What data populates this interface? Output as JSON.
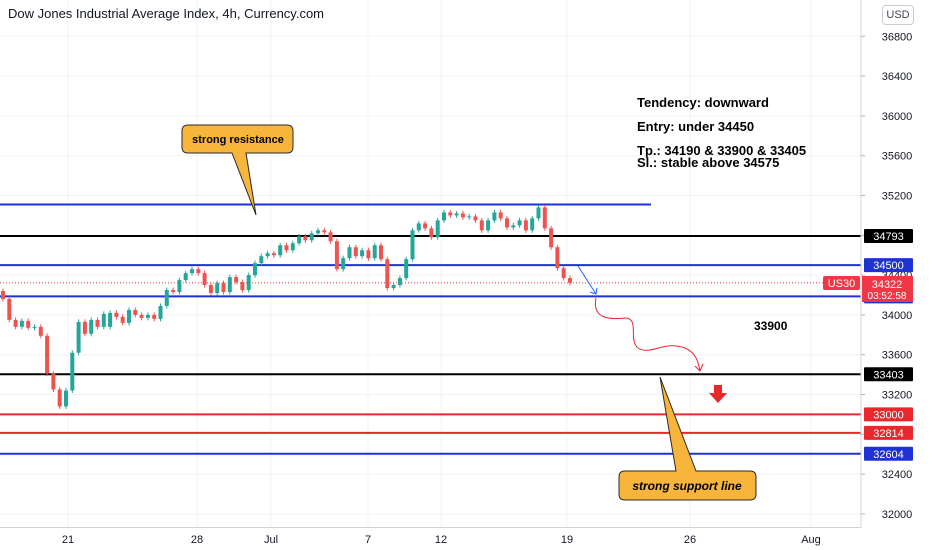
{
  "header": {
    "title": "Dow Jones Industrial Average Index, 4h, Currency.com",
    "currency_button": "USD"
  },
  "notes": {
    "tendency": "Tendency: downward",
    "entry": "Entry: under 34450",
    "tp": "Tp.: 34190 & 33900 & 33405",
    "sl": "Sl.: stable above 34575",
    "target": "33900"
  },
  "callouts": {
    "resistance": "strong resistance",
    "support": "strong support line"
  },
  "chart_data": {
    "type": "candlestick",
    "ylim": [
      31900,
      37000
    ],
    "y_ticks": [
      32000,
      32400,
      32800,
      33200,
      33600,
      34000,
      34400,
      34800,
      35200,
      35600,
      36000,
      36400,
      36800
    ],
    "x_tick_labels": [
      "21",
      "28",
      "Jul",
      "7",
      "12",
      "19",
      "26",
      "Aug"
    ],
    "horizontal_levels": [
      {
        "value": 35110,
        "color": "#1e32d6",
        "label": ""
      },
      {
        "value": 34793,
        "color": "#000000",
        "label": "34793"
      },
      {
        "value": 34500,
        "color": "#1e32d6",
        "label": "34500"
      },
      {
        "value": 34186,
        "color": "#1e32d6",
        "label": "34186"
      },
      {
        "value": 33403,
        "color": "#000000",
        "label": "33403"
      },
      {
        "value": 33000,
        "color": "#e8282c",
        "label": "33000"
      },
      {
        "value": 32814,
        "color": "#e8282c",
        "label": "32814"
      },
      {
        "value": 32604,
        "color": "#1e32d6",
        "label": "32604"
      }
    ],
    "current_price": {
      "symbol": "US30",
      "value": "34322",
      "countdown": "03:52:58",
      "level": 34322
    },
    "candles": [
      [
        34240,
        34160
      ],
      [
        34160,
        33950
      ],
      [
        33950,
        33880
      ],
      [
        33880,
        33940
      ],
      [
        33940,
        33870
      ],
      [
        33870,
        33880
      ],
      [
        33880,
        33790
      ],
      [
        33790,
        33410
      ],
      [
        33410,
        33250
      ],
      [
        33250,
        33080
      ],
      [
        33080,
        33240
      ],
      [
        33240,
        33620
      ],
      [
        33620,
        33930
      ],
      [
        33930,
        33810
      ],
      [
        33810,
        33950
      ],
      [
        33950,
        33880
      ],
      [
        33880,
        34010
      ],
      [
        33880,
        34020
      ],
      [
        34020,
        33980
      ],
      [
        33980,
        33920
      ],
      [
        33920,
        34050
      ],
      [
        34050,
        34000
      ],
      [
        34000,
        33970
      ],
      [
        33970,
        34000
      ],
      [
        34000,
        33960
      ],
      [
        33960,
        34090
      ],
      [
        34090,
        34250
      ],
      [
        34250,
        34230
      ],
      [
        34230,
        34350
      ],
      [
        34350,
        34420
      ],
      [
        34420,
        34460
      ],
      [
        34460,
        34420
      ],
      [
        34420,
        34300
      ],
      [
        34300,
        34220
      ],
      [
        34220,
        34320
      ],
      [
        34320,
        34230
      ],
      [
        34230,
        34380
      ],
      [
        34380,
        34330
      ],
      [
        34330,
        34250
      ],
      [
        34250,
        34400
      ],
      [
        34400,
        34520
      ],
      [
        34520,
        34590
      ],
      [
        34590,
        34620
      ],
      [
        34620,
        34600
      ],
      [
        34600,
        34700
      ],
      [
        34700,
        34650
      ],
      [
        34650,
        34720
      ],
      [
        34720,
        34790
      ],
      [
        34790,
        34750
      ],
      [
        34750,
        34820
      ],
      [
        34820,
        34850
      ],
      [
        34850,
        34830
      ],
      [
        34830,
        34740
      ],
      [
        34740,
        34460
      ],
      [
        34460,
        34570
      ],
      [
        34570,
        34680
      ],
      [
        34680,
        34590
      ],
      [
        34590,
        34650
      ],
      [
        34650,
        34570
      ],
      [
        34570,
        34700
      ],
      [
        34700,
        34560
      ],
      [
        34560,
        34270
      ],
      [
        34270,
        34300
      ],
      [
        34300,
        34370
      ],
      [
        34370,
        34560
      ],
      [
        34560,
        34850
      ],
      [
        34850,
        34920
      ],
      [
        34920,
        34870
      ],
      [
        34870,
        34780
      ],
      [
        34780,
        34950
      ],
      [
        34950,
        35030
      ],
      [
        35030,
        35000
      ],
      [
        35000,
        35020
      ],
      [
        35020,
        34980
      ],
      [
        34980,
        34990
      ],
      [
        34990,
        34950
      ],
      [
        34950,
        34850
      ],
      [
        34850,
        34950
      ],
      [
        34950,
        35030
      ],
      [
        35030,
        34970
      ],
      [
        34970,
        34880
      ],
      [
        34880,
        34900
      ],
      [
        34900,
        34950
      ],
      [
        34950,
        34850
      ],
      [
        34850,
        34970
      ],
      [
        34970,
        35080
      ],
      [
        35080,
        34870
      ],
      [
        34870,
        34680
      ],
      [
        34680,
        34470
      ],
      [
        34470,
        34370
      ],
      [
        34370,
        34322
      ]
    ]
  }
}
